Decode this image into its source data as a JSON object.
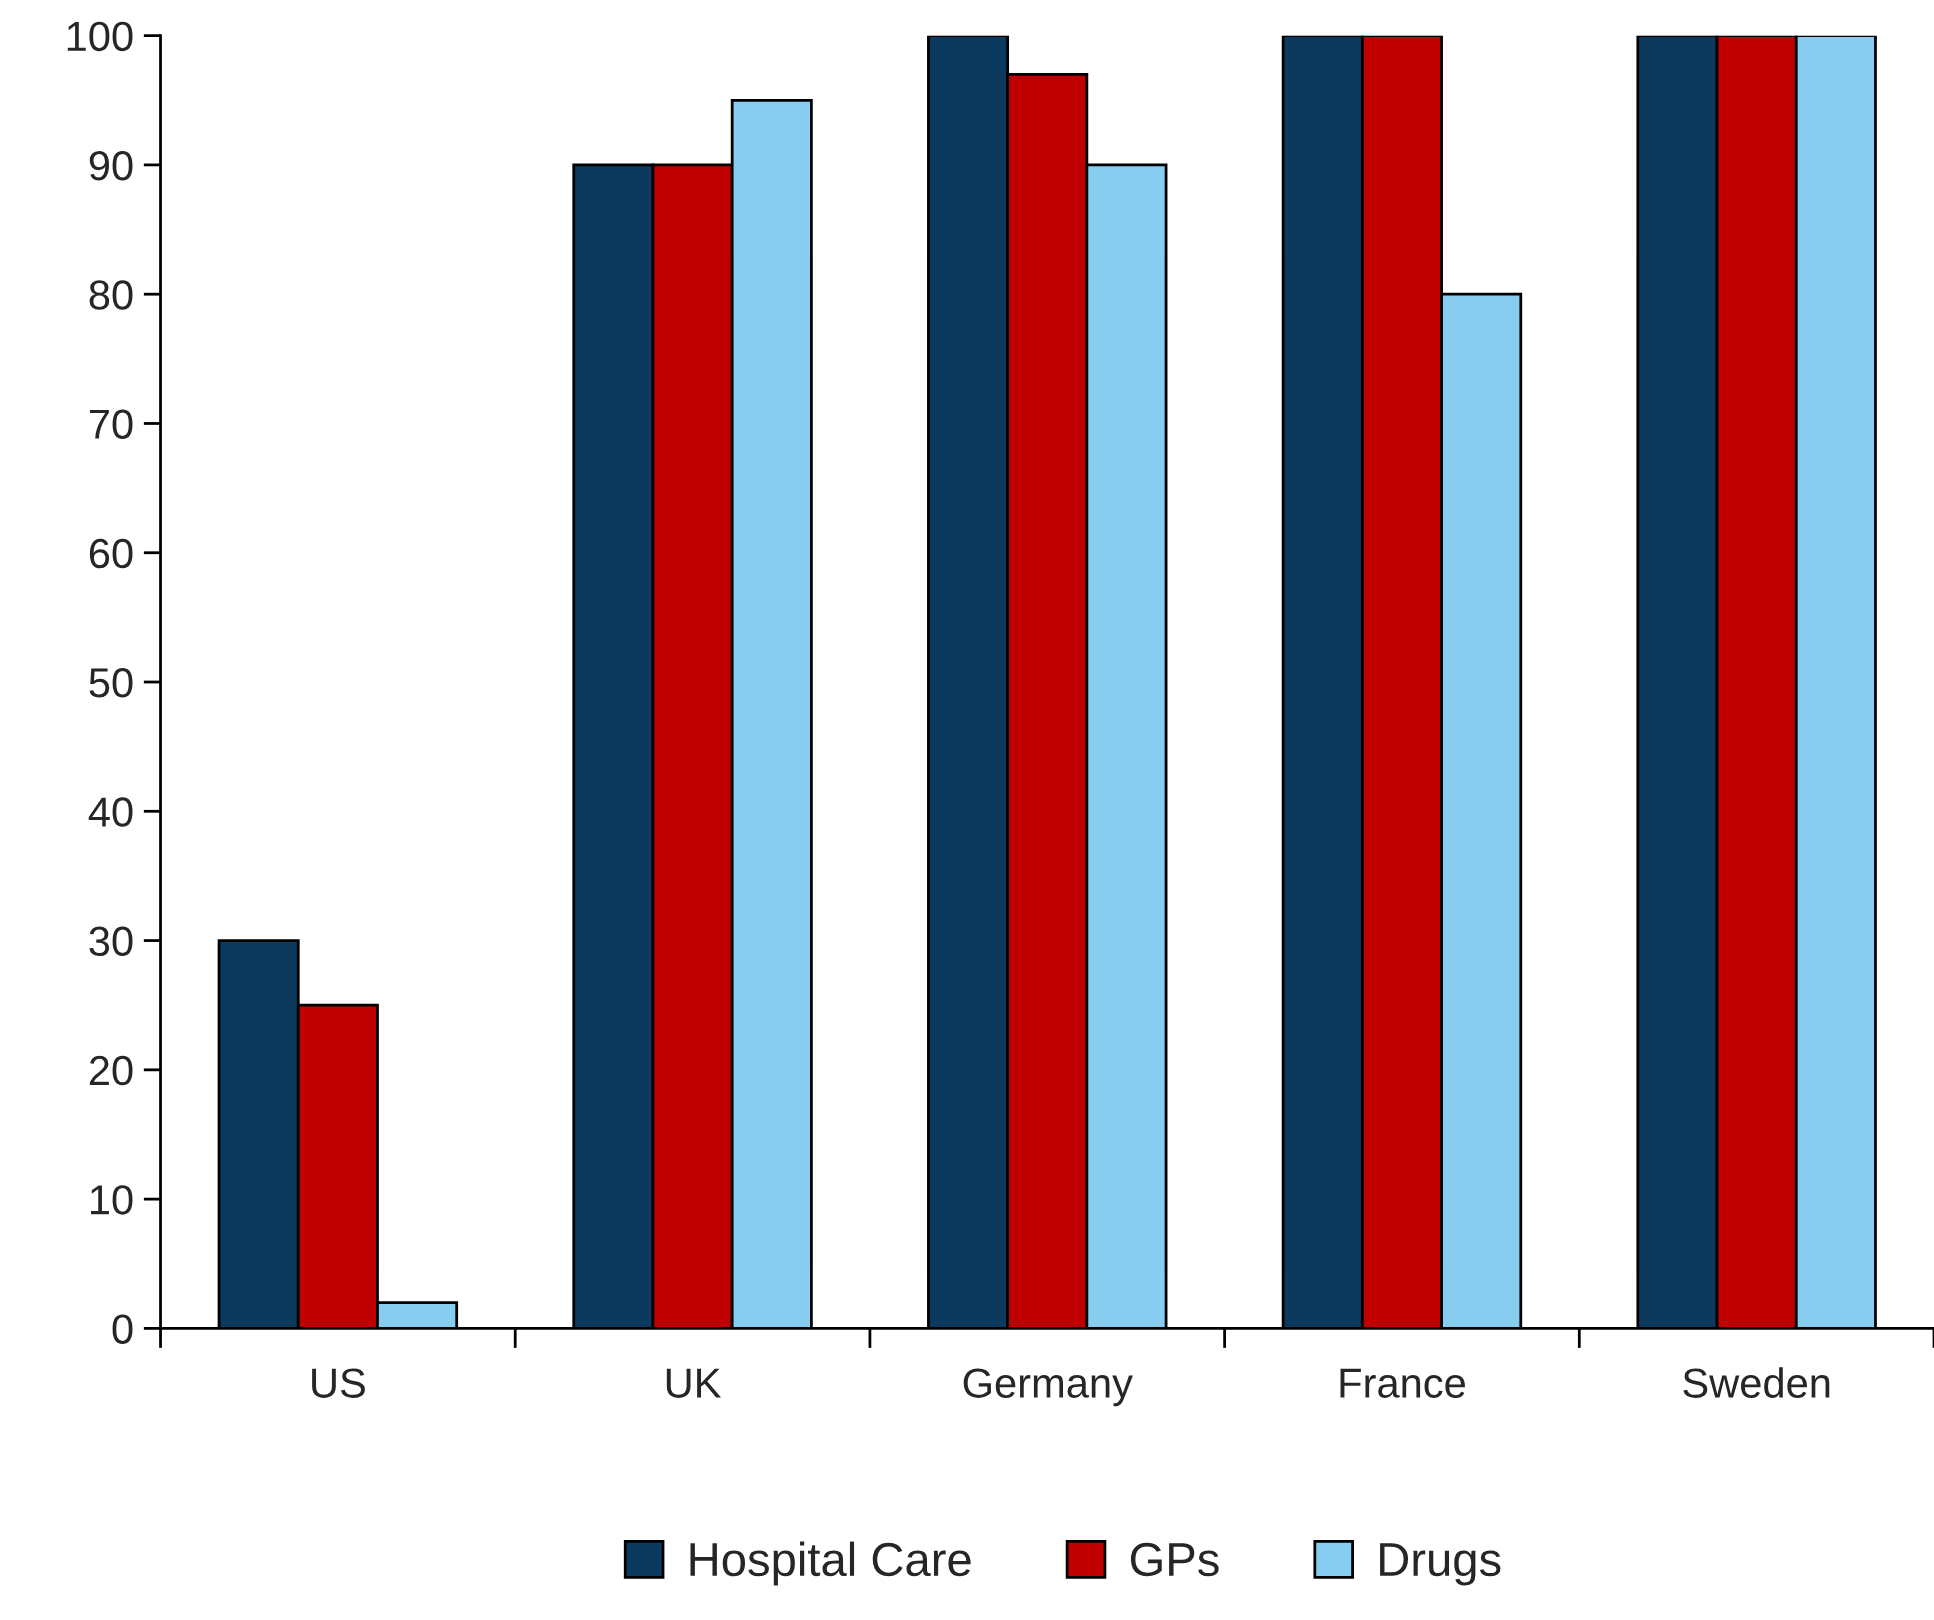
{
  "chart_data": {
    "type": "bar",
    "categories": [
      "US",
      "UK",
      "Germany",
      "France",
      "Sweden"
    ],
    "series": [
      {
        "name": "Hospital Care",
        "color": "#0b3a5e",
        "values": [
          30,
          90,
          100,
          100,
          100
        ]
      },
      {
        "name": "GPs",
        "color": "#c00000",
        "values": [
          25,
          90,
          97,
          100,
          100
        ]
      },
      {
        "name": "Drugs",
        "color": "#87cdf0",
        "values": [
          2,
          95,
          90,
          80,
          100
        ]
      }
    ],
    "ylim": [
      0,
      100
    ],
    "yticks": [
      0,
      10,
      20,
      30,
      40,
      50,
      60,
      70,
      80,
      90,
      100
    ],
    "grid": false,
    "legend": "bottom"
  }
}
